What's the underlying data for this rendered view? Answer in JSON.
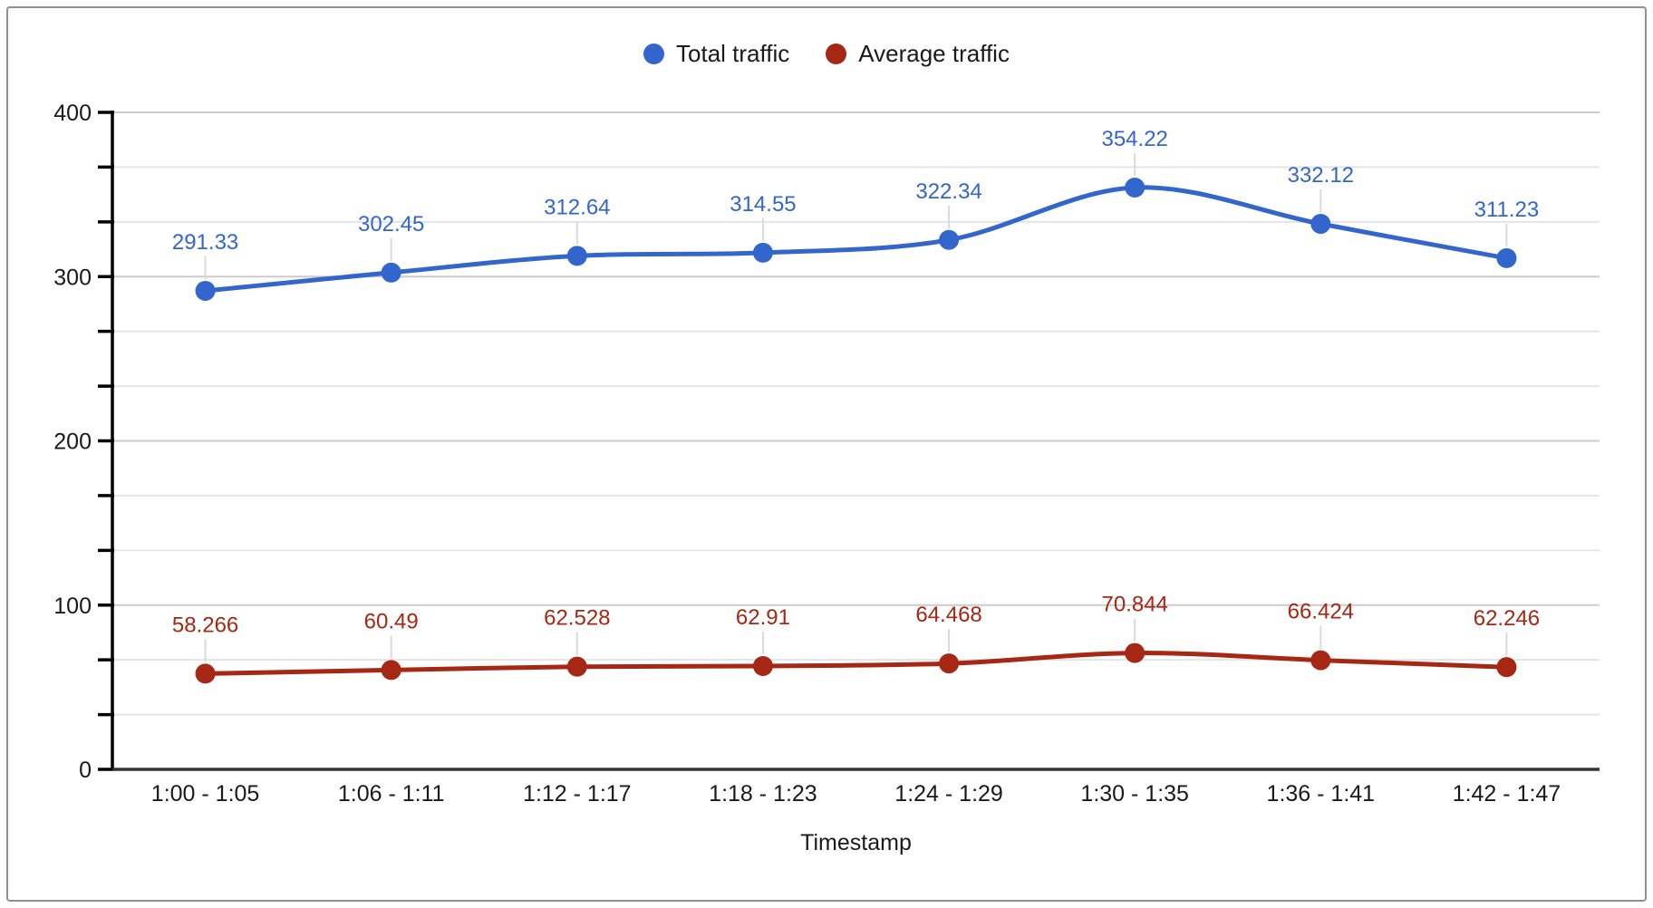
{
  "chart_data": {
    "type": "line",
    "smooth": true,
    "grid": true,
    "legend_position": "top",
    "xlabel": "Timestamp",
    "categories": [
      "1:00 - 1:05",
      "1:06 - 1:11",
      "1:12 - 1:17",
      "1:18 - 1:23",
      "1:24 - 1:29",
      "1:30 - 1:35",
      "1:36 - 1:41",
      "1:42 - 1:47"
    ],
    "series": [
      {
        "name": "Total traffic",
        "color": "#3366cc",
        "values": [
          291.33,
          302.45,
          312.64,
          314.55,
          322.34,
          354.22,
          332.12,
          311.23
        ]
      },
      {
        "name": "Average traffic",
        "color": "#a52714",
        "values": [
          58.266,
          60.49,
          62.528,
          62.91,
          64.468,
          70.844,
          66.424,
          62.246
        ]
      }
    ],
    "y_axis": {
      "min": 0,
      "max": 400,
      "major_step": 100,
      "minor_per_major": 3,
      "tick_labels": [
        "0",
        "100",
        "200",
        "300",
        "400"
      ]
    }
  },
  "colors": {
    "background": "#ffffff",
    "frame_border": "#909090",
    "major_grid": "#cccccc",
    "minor_grid": "#e4e4e4",
    "axis_line": "#333333",
    "tick": "#000000",
    "axis_text": "#1a1a1a",
    "leader_line": "#dadada"
  }
}
